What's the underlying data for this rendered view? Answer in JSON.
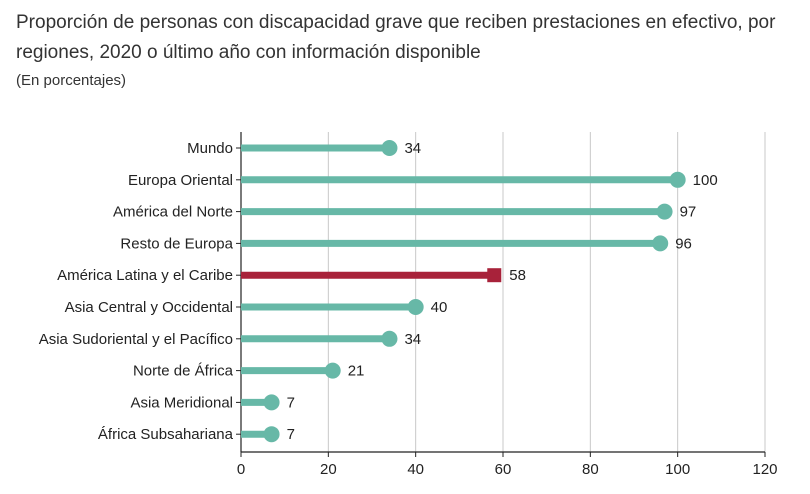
{
  "chart_data": {
    "type": "bar",
    "title": "Proporción de personas con discapacidad grave que reciben prestaciones en efectivo, por regiones, 2020 o último año con información disponible",
    "subtitle": "(En porcentajes)",
    "xlabel": "",
    "ylabel": "",
    "xlim": [
      0,
      120
    ],
    "xticks": [
      0,
      20,
      40,
      60,
      80,
      100,
      120
    ],
    "categories": [
      "Mundo",
      "Europa Oriental",
      "América del Norte",
      "Resto de Europa",
      "América Latina y el Caribe",
      "Asia Central y Occidental",
      "Asia Sudoriental y el Pacífico",
      "Norte de África",
      "Asia Meridional",
      "África Subsahariana"
    ],
    "values": [
      34,
      100,
      97,
      96,
      58,
      40,
      34,
      21,
      7,
      7
    ],
    "highlight": "América Latina y el Caribe",
    "colors": {
      "default": "#67b8a7",
      "highlight": "#a8223a",
      "grid": "#c8c8c8",
      "axis": "#222222"
    }
  }
}
